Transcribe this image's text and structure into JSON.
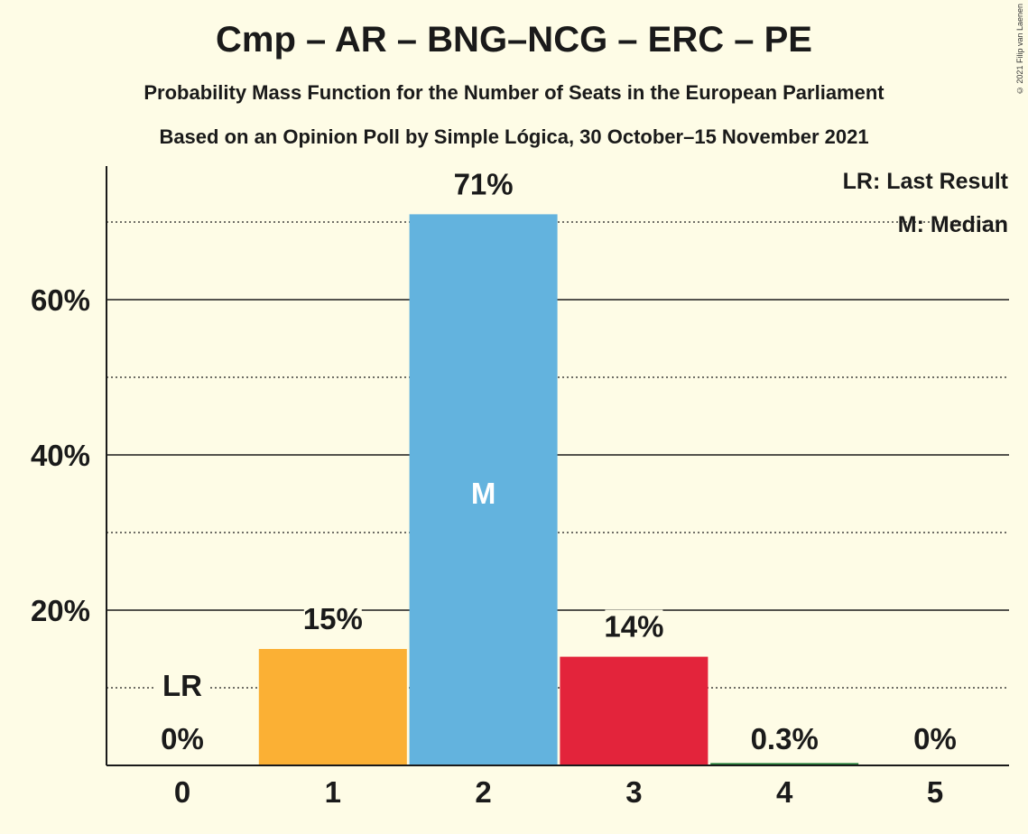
{
  "header": {
    "title": "Cmp – AR – BNG–NCG – ERC – PE",
    "subtitle": "Probability Mass Function for the Number of Seats in the European Parliament",
    "source": "Based on an Opinion Poll by Simple Lógica, 30 October–15 November 2021",
    "copyright": "© 2021 Filip van Laenen"
  },
  "legend": {
    "last_result": "LR: Last Result",
    "median": "M: Median"
  },
  "chart_data": {
    "type": "bar",
    "categories": [
      "0",
      "1",
      "2",
      "3",
      "4",
      "5"
    ],
    "values": [
      0,
      15,
      71,
      14,
      0.3,
      0
    ],
    "value_labels": [
      "0%",
      "15%",
      "71%",
      "14%",
      "0.3%",
      "0%"
    ],
    "colors": [
      "#6ab04c",
      "#fbb034",
      "#63b3de",
      "#e3243b",
      "#1e7b34",
      "#1e7b34"
    ],
    "ylim": [
      0,
      77
    ],
    "yticks_major": [
      20,
      40,
      60
    ],
    "ytick_labels": [
      "20%",
      "40%",
      "60%"
    ],
    "yticks_minor": [
      10,
      30,
      50,
      70
    ],
    "last_result_index": 0,
    "last_result_label": "LR",
    "median_index": 2,
    "median_label": "M",
    "legend_position": "top-right"
  }
}
